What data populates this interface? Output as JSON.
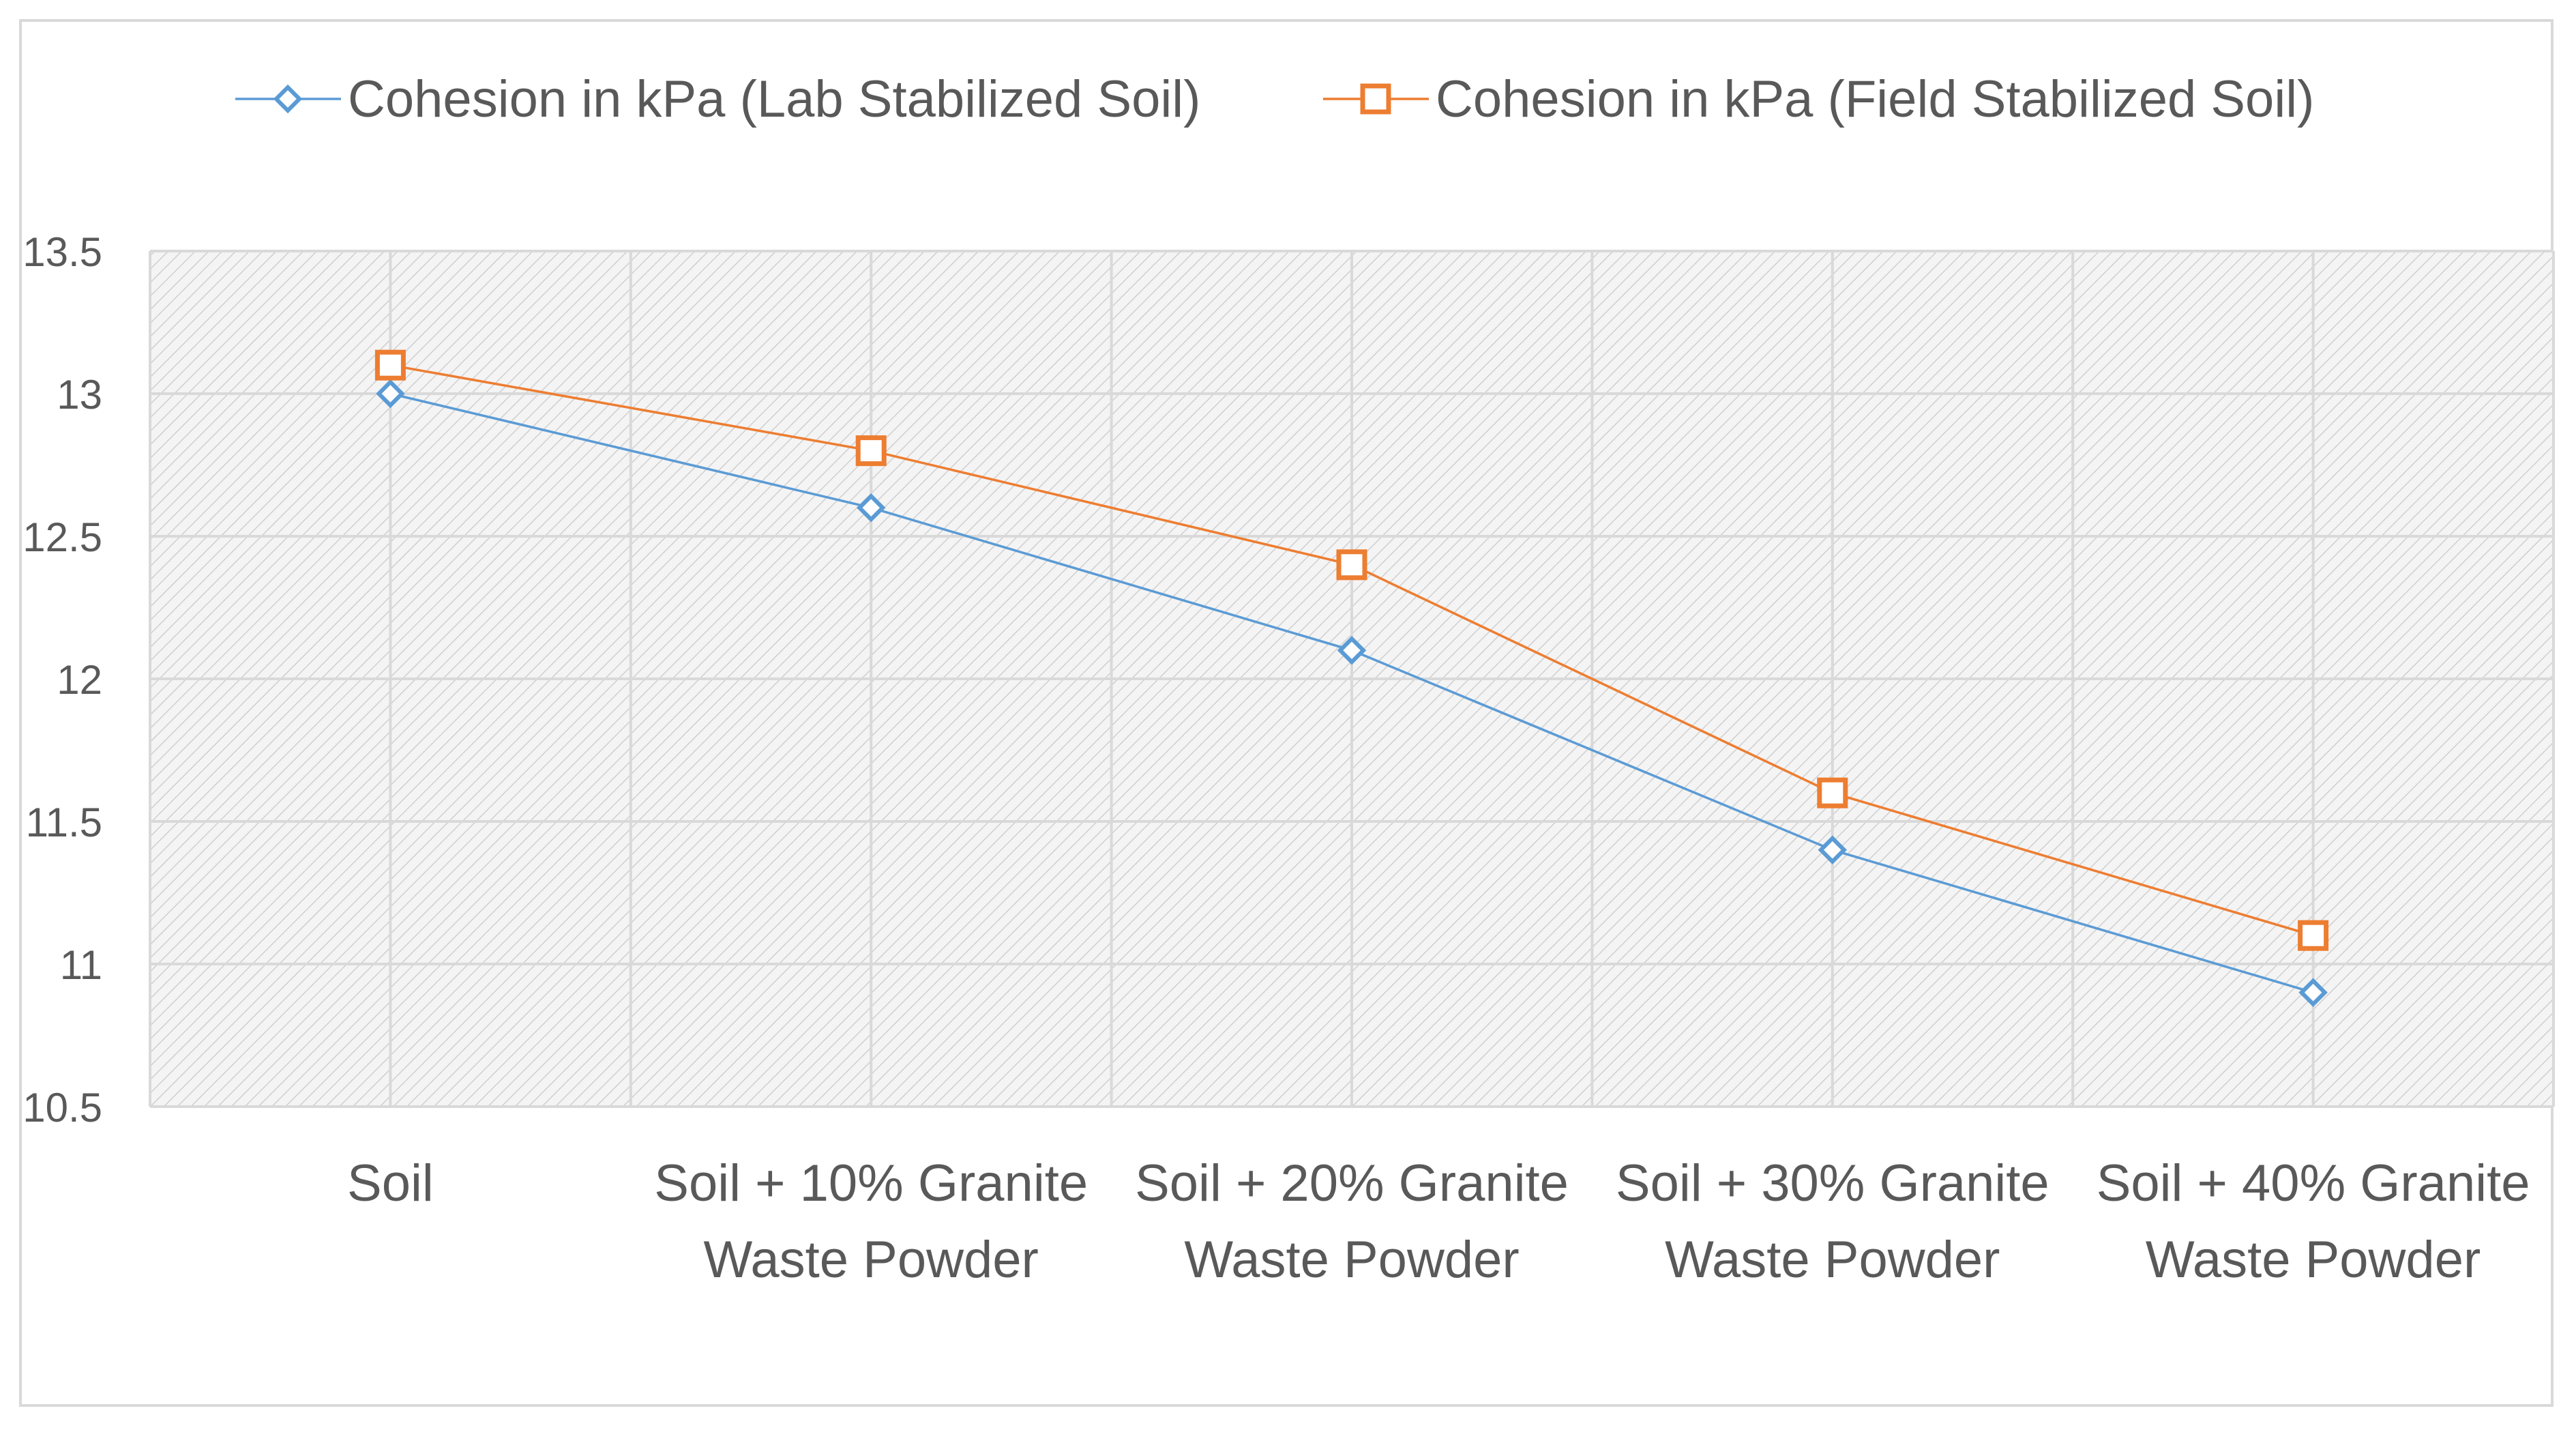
{
  "chart_data": {
    "type": "line",
    "title": "",
    "xlabel": "",
    "ylabel": "",
    "categories": [
      [
        "Soil"
      ],
      [
        "Soil + 10% Granite",
        "Waste Powder"
      ],
      [
        "Soil + 20% Granite",
        "Waste Powder"
      ],
      [
        "Soil + 30% Granite",
        "Waste Powder"
      ],
      [
        "Soil + 40% Granite",
        "Waste Powder"
      ]
    ],
    "ylim": [
      10.5,
      13.5
    ],
    "yticks": [
      "13.5",
      "13",
      "12.5",
      "12",
      "11.5",
      "11",
      "10.5"
    ],
    "ytick_values": [
      13.5,
      13,
      12.5,
      12,
      11.5,
      11,
      10.5
    ],
    "grid": true,
    "legend_position": "top",
    "series": [
      {
        "name": "Cohesion in kPa (Lab Stabilized Soil)",
        "marker": "diamond",
        "color": "#5B9BD5",
        "values": [
          13.0,
          12.6,
          12.1,
          11.4,
          10.9
        ]
      },
      {
        "name": "Cohesion in kPa (Field Stabilized Soil)",
        "marker": "square",
        "color": "#ED7D31",
        "values": [
          13.1,
          12.8,
          12.4,
          11.6,
          11.1
        ]
      }
    ]
  },
  "colors": {
    "gridline": "#D9D9D9",
    "hatch": "#D0D0D0",
    "plot_background": "#F2F2F2",
    "text": "#595959",
    "border": "#D9D9D9"
  }
}
